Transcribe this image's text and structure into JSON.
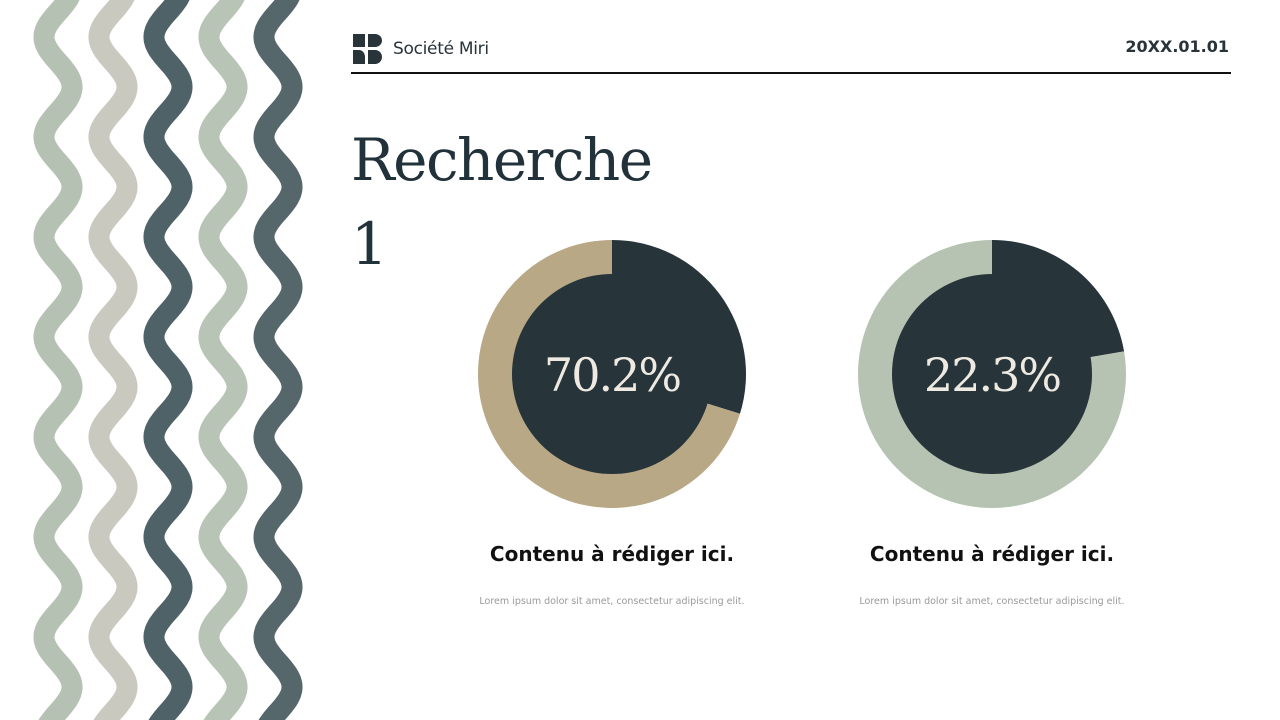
{
  "header": {
    "company": "Société Miri",
    "date": "20XX.01.01"
  },
  "title": "Recherche 1",
  "colors": {
    "dark": "#27343a",
    "tan": "#b8a886",
    "sage": "#b6c3b3",
    "wave_colors": [
      "#b5c2b3",
      "#c9c9bf",
      "#4f6268",
      "#b8c4b6",
      "#56676c"
    ]
  },
  "chart_data": [
    {
      "type": "pie",
      "label": "70.2%",
      "slices": [
        {
          "value": 29.8,
          "color": "#27343a"
        },
        {
          "value": 70.2,
          "color": "#b8a886"
        }
      ],
      "caption": "Contenu à rédiger ici.",
      "text": "Lorem ipsum dolor sit amet, consectetur adipiscing elit."
    },
    {
      "type": "pie",
      "label": "22.3%",
      "slices": [
        {
          "value": 22.3,
          "color": "#27343a"
        },
        {
          "value": 77.7,
          "color": "#b6c3b3"
        }
      ],
      "caption": "Contenu à rédiger ici.",
      "text": "Lorem ipsum dolor sit amet, consectetur adipiscing elit."
    }
  ]
}
